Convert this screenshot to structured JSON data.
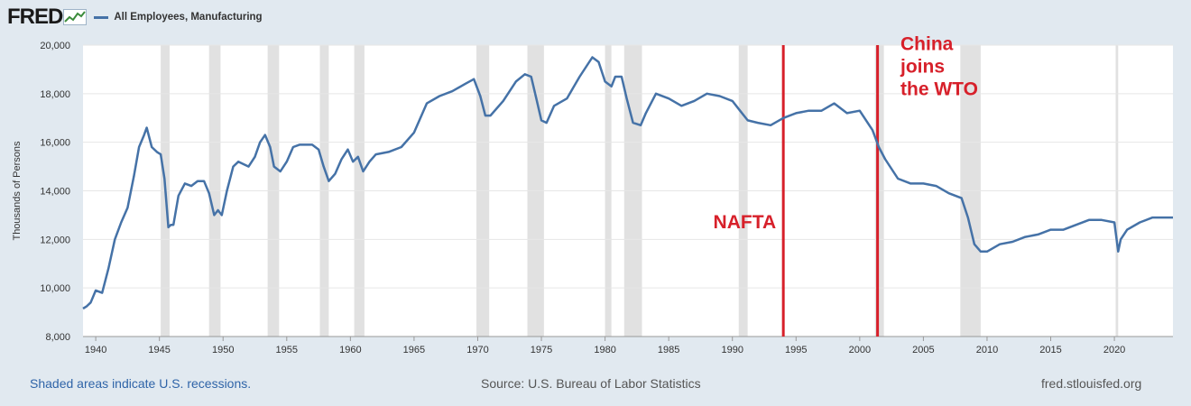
{
  "header": {
    "logo_text": "FRED",
    "logo_icon": "fred-line-graph-icon",
    "legend_label": "All Employees, Manufacturing"
  },
  "footer": {
    "recession_note": "Shaded areas indicate U.S. recessions.",
    "source": "Source: U.S. Bureau of Labor Statistics",
    "site": "fred.stlouisfed.org"
  },
  "colors": {
    "series": "#4572a7",
    "annotation": "#d7202a",
    "recession": "#e1e1e1",
    "page_background": "#e1e9f0",
    "plot_background": "#ffffff"
  },
  "chart_data": {
    "type": "line",
    "ylabel": "Thousands of Persons",
    "ylim": [
      8000,
      20000
    ],
    "xlim": [
      1939.0,
      2024.6
    ],
    "y_ticks": [
      8000,
      10000,
      12000,
      14000,
      16000,
      18000,
      20000
    ],
    "y_tick_labels": [
      "8,000",
      "10,000",
      "12,000",
      "14,000",
      "16,000",
      "18,000",
      "20,000"
    ],
    "x_ticks": [
      1940,
      1945,
      1950,
      1955,
      1960,
      1965,
      1970,
      1975,
      1980,
      1985,
      1990,
      1995,
      2000,
      2005,
      2010,
      2015,
      2020
    ],
    "grid": true,
    "legend": "top-left",
    "recessions": [
      [
        1945.1,
        1945.8
      ],
      [
        1948.9,
        1949.8
      ],
      [
        1953.5,
        1954.4
      ],
      [
        1957.6,
        1958.3
      ],
      [
        1960.3,
        1961.1
      ],
      [
        1969.9,
        1970.9
      ],
      [
        1973.9,
        1975.2
      ],
      [
        1980.0,
        1980.5
      ],
      [
        1981.5,
        1982.9
      ],
      [
        1990.5,
        1991.2
      ],
      [
        2001.2,
        2001.9
      ],
      [
        2007.9,
        2009.5
      ],
      [
        2020.1,
        2020.3
      ]
    ],
    "annotations": [
      {
        "text": "NAFTA",
        "x": 1994.0,
        "label_x": 1988.5,
        "label_y": 12450,
        "lines": [
          "NAFTA"
        ]
      },
      {
        "text": "China joins the WTO",
        "x": 2001.4,
        "label_x": 2003.2,
        "label_y": 19800,
        "lines": [
          "China",
          "joins",
          "the WTO"
        ]
      }
    ],
    "series": [
      {
        "name": "All Employees, Manufacturing",
        "x": [
          1939.0,
          1939.3,
          1939.6,
          1940.0,
          1940.5,
          1941.0,
          1941.5,
          1942.0,
          1942.5,
          1943.0,
          1943.4,
          1943.8,
          1944.0,
          1944.4,
          1944.8,
          1945.1,
          1945.4,
          1945.7,
          1945.9,
          1946.1,
          1946.5,
          1947.0,
          1947.5,
          1948.0,
          1948.5,
          1948.9,
          1949.3,
          1949.6,
          1949.9,
          1950.3,
          1950.8,
          1951.2,
          1952.0,
          1952.5,
          1952.9,
          1953.3,
          1953.7,
          1954.0,
          1954.5,
          1955.0,
          1955.5,
          1956.0,
          1956.5,
          1957.0,
          1957.5,
          1957.9,
          1958.3,
          1958.8,
          1959.3,
          1959.8,
          1960.2,
          1960.6,
          1961.0,
          1961.5,
          1962.0,
          1963.0,
          1964.0,
          1965.0,
          1966.0,
          1967.0,
          1968.0,
          1969.0,
          1969.7,
          1970.2,
          1970.6,
          1971.0,
          1972.0,
          1973.0,
          1973.7,
          1974.2,
          1974.6,
          1975.0,
          1975.4,
          1976.0,
          1977.0,
          1978.0,
          1979.0,
          1979.5,
          1980.0,
          1980.5,
          1980.8,
          1981.3,
          1981.7,
          1982.2,
          1982.8,
          1983.2,
          1984.0,
          1985.0,
          1986.0,
          1987.0,
          1988.0,
          1989.0,
          1990.0,
          1990.6,
          1991.2,
          1992.0,
          1993.0,
          1994.0,
          1995.0,
          1996.0,
          1997.0,
          1998.0,
          1999.0,
          2000.0,
          2001.0,
          2001.5,
          2002.0,
          2003.0,
          2004.0,
          2005.0,
          2006.0,
          2007.0,
          2008.0,
          2008.5,
          2009.0,
          2009.5,
          2010.0,
          2011.0,
          2012.0,
          2013.0,
          2014.0,
          2015.0,
          2016.0,
          2017.0,
          2018.0,
          2019.0,
          2020.0,
          2020.3,
          2020.5,
          2021.0,
          2022.0,
          2023.0,
          2024.0,
          2024.6
        ],
        "values": [
          9150,
          9250,
          9400,
          9900,
          9800,
          10800,
          12000,
          12700,
          13300,
          14600,
          15800,
          16300,
          16600,
          15800,
          15600,
          15500,
          14500,
          12500,
          12600,
          12600,
          13800,
          14300,
          14200,
          14400,
          14400,
          13900,
          13000,
          13200,
          13000,
          14000,
          15000,
          15200,
          15000,
          15400,
          16000,
          16300,
          15800,
          15000,
          14800,
          15200,
          15800,
          15900,
          15900,
          15900,
          15700,
          15000,
          14400,
          14700,
          15300,
          15700,
          15200,
          15400,
          14800,
          15200,
          15500,
          15600,
          15800,
          16400,
          17600,
          17900,
          18100,
          18400,
          18600,
          17900,
          17100,
          17100,
          17700,
          18500,
          18800,
          18700,
          17800,
          16900,
          16800,
          17500,
          17800,
          18700,
          19500,
          19300,
          18500,
          18300,
          18700,
          18700,
          17800,
          16800,
          16700,
          17200,
          18000,
          17800,
          17500,
          17700,
          18000,
          17900,
          17700,
          17300,
          16900,
          16800,
          16700,
          17000,
          17200,
          17300,
          17300,
          17600,
          17200,
          17300,
          16500,
          15800,
          15300,
          14500,
          14300,
          14300,
          14200,
          13900,
          13700,
          12900,
          11800,
          11500,
          11500,
          11800,
          11900,
          12100,
          12200,
          12400,
          12400,
          12600,
          12800,
          12800,
          12700,
          11500,
          12000,
          12400,
          12700,
          12900,
          12900,
          12900
        ]
      }
    ]
  }
}
